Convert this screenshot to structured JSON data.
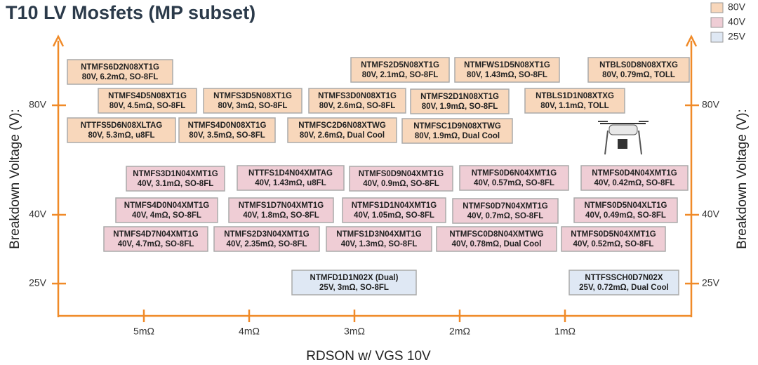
{
  "title": "T10 LV Mosfets (MP subset)",
  "legend": [
    "80V",
    "40V",
    "25V"
  ],
  "y_axis_label": "Breakdown Voltage (V):",
  "x_axis_label": "RDSON w/ VGS 10V",
  "x_ticks": [
    "5mΩ",
    "4mΩ",
    "3mΩ",
    "2mΩ",
    "1mΩ"
  ],
  "y_ticks": [
    "80V",
    "40V",
    "25V"
  ],
  "parts": [
    {
      "name": "NTMFS6D2N08XT1G",
      "spec": "80V, 6.2mΩ, SO-8FL",
      "group": 0
    },
    {
      "name": "NTMFS2D5N08XT1G",
      "spec": "80V, 2.1mΩ, SO-8FL",
      "group": 0
    },
    {
      "name": "NTMFWS1D5N08XT1G",
      "spec": "80V, 1.43mΩ, SO-8FL",
      "group": 0
    },
    {
      "name": "NTBLS0D8N08XTXG",
      "spec": "80V, 0.79mΩ, TOLL",
      "group": 0
    },
    {
      "name": "NTMFS4D5N08XT1G",
      "spec": "80V, 4.5mΩ, SO-8FL",
      "group": 0
    },
    {
      "name": "NTMFS3D5N08XT1G",
      "spec": "80V, 3mΩ, SO-8FL",
      "group": 0
    },
    {
      "name": "NTMFS3D0N08XT1G",
      "spec": "80V, 2.6mΩ, SO-8FL",
      "group": 0
    },
    {
      "name": "NTMFS2D1N08XT1G",
      "spec": "80V, 1.9mΩ, SO-8FL",
      "group": 0
    },
    {
      "name": "NTBLS1D1N08XTXG",
      "spec": "80V, 1.1mΩ, TOLL",
      "group": 0
    },
    {
      "name": "NTTFS5D6N08XLTAG",
      "spec": "80V, 5.3mΩ, u8FL",
      "group": 0
    },
    {
      "name": "NTMFS4D0N08XT1G",
      "spec": "80V, 3.5mΩ, SO-8FL",
      "group": 0
    },
    {
      "name": "NTMFSC2D6N08XTWG",
      "spec": "80V, 2.6mΩ, Dual Cool",
      "group": 0
    },
    {
      "name": "NTMFSC1D9N08XTWG",
      "spec": "80V, 1.9mΩ, Dual Cool",
      "group": 0
    },
    {
      "name": "NTMFS3D1N04XMT1G",
      "spec": "40V, 3.1mΩ, SO-8FL",
      "group": 1
    },
    {
      "name": "NTTFS1D4N04XMTAG",
      "spec": "40V, 1.43mΩ, u8FL",
      "group": 1
    },
    {
      "name": "NTMFS0D9N04XMT1G",
      "spec": "40V, 0.9mΩ, SO-8FL",
      "group": 1
    },
    {
      "name": "NTMFS0D6N04XMT1G",
      "spec": "40V, 0.57mΩ, SO-8FL",
      "group": 1
    },
    {
      "name": "NTMFS0D4N04XMT1G",
      "spec": "40V, 0.42mΩ, SO-8FL",
      "group": 1
    },
    {
      "name": "NTMFS4D0N04XMT1G",
      "spec": "40V, 4mΩ, SO-8FL",
      "group": 1
    },
    {
      "name": "NTMFS1D7N04XMT1G",
      "spec": "40V, 1.8mΩ, SO-8FL",
      "group": 1
    },
    {
      "name": "NTMFS1D1N04XMT1G",
      "spec": "40V, 1.05mΩ, SO-8FL",
      "group": 1
    },
    {
      "name": "NTMFS0D7N04XMT1G",
      "spec": "40V, 0.7mΩ, SO-8FL",
      "group": 1
    },
    {
      "name": "NTMFS0D5N04XLT1G",
      "spec": "40V, 0.49mΩ, SO-8FL",
      "group": 1
    },
    {
      "name": "NTMFS4D7N04XMT1G",
      "spec": "40V, 4.7mΩ, SO-8FL",
      "group": 1
    },
    {
      "name": "NTMFS2D3N04XMT1G",
      "spec": "40V, 2.35mΩ, SO-8FL",
      "group": 1
    },
    {
      "name": "NTMFS1D3N04XMT1G",
      "spec": "40V, 1.3mΩ, SO-8FL",
      "group": 1
    },
    {
      "name": "NTMFSC0D8N04XMTWG",
      "spec": "40V, 0.78mΩ, Dual Cool",
      "group": 1
    },
    {
      "name": "NTMFS0D5N04XMT1G",
      "spec": "40V, 0.52mΩ, SO-8FL",
      "group": 1
    },
    {
      "name": "NTMFD1D1N02X (Dual)",
      "spec": "25V, 3mΩ, SO-8FL",
      "group": 2
    },
    {
      "name": "NTTFSSCH0D7N02X",
      "spec": "25V, 0.72mΩ, Dual Cool",
      "group": 2
    }
  ]
}
